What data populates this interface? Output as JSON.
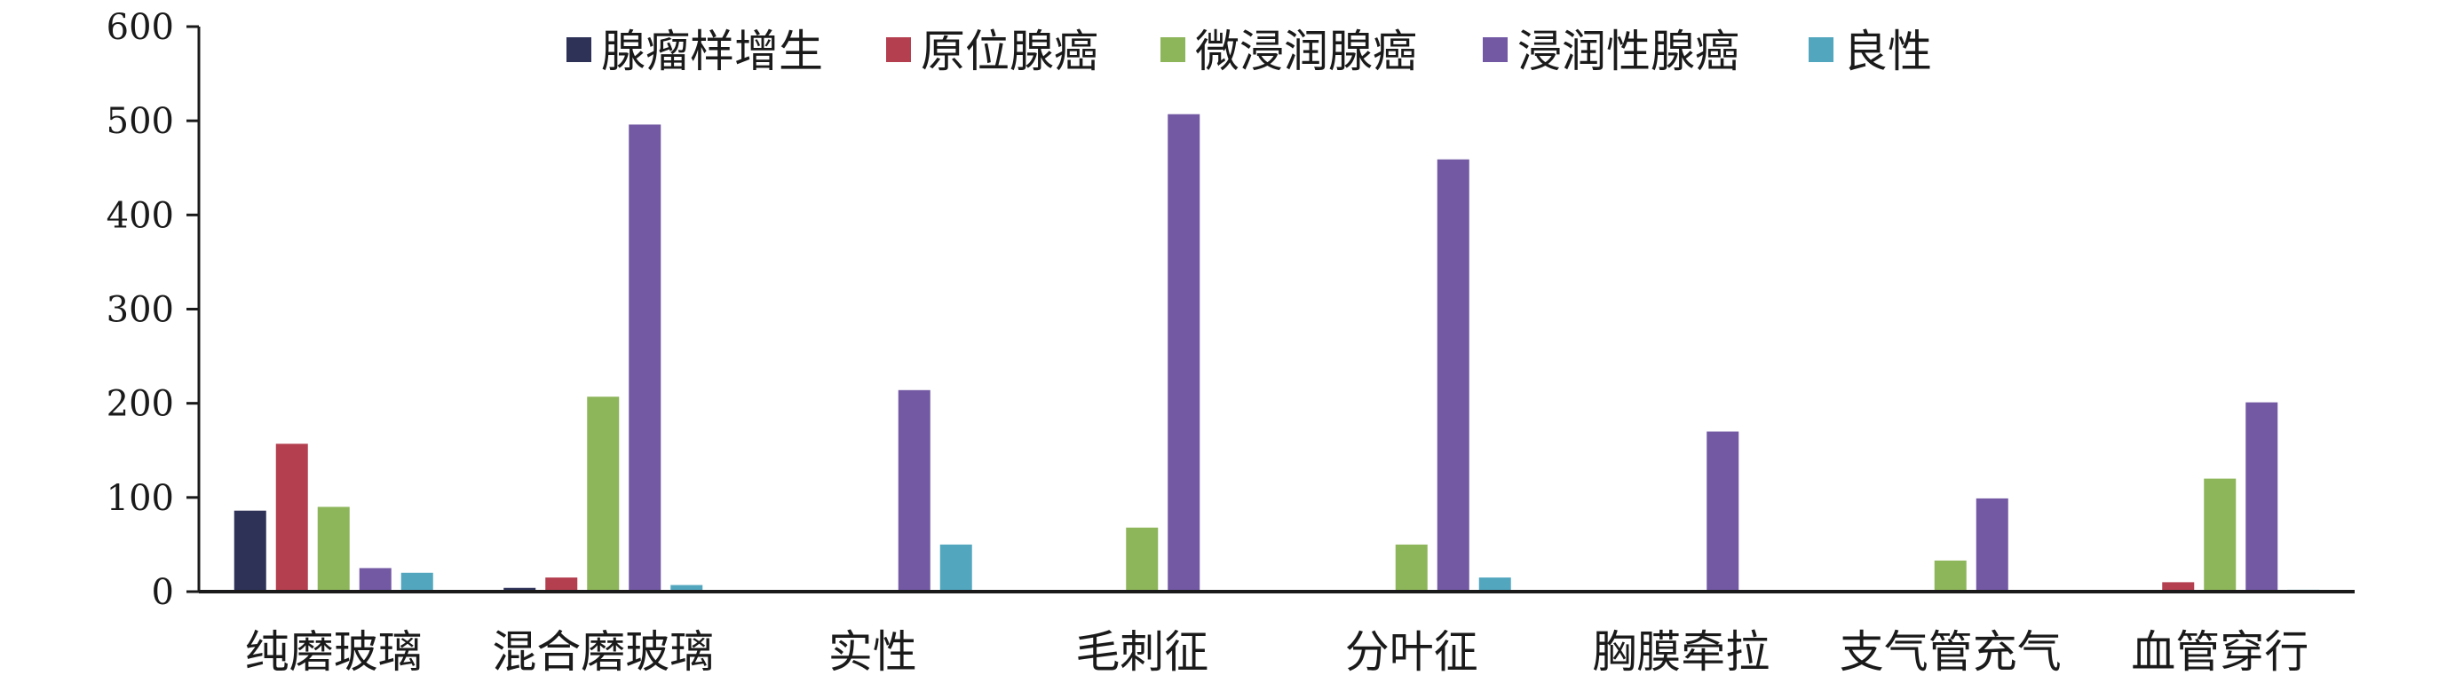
{
  "chart_data": {
    "type": "bar",
    "title": "",
    "xlabel": "",
    "ylabel": "",
    "ylim": [
      0,
      600
    ],
    "yticks": [
      0,
      100,
      200,
      300,
      400,
      500,
      600
    ],
    "ytick_labels": [
      "0",
      "100",
      "200",
      "300",
      "400",
      "500",
      "600"
    ],
    "grid": false,
    "legend_position": "top-center",
    "categories": [
      "纯磨玻璃",
      "混合磨玻璃",
      "实性",
      "毛刺征",
      "分叶征",
      "胸膜牵拉",
      "支气管充气",
      "血管穿行"
    ],
    "series": [
      {
        "name": "腺瘤样增生",
        "color": "#2e3257",
        "values": [
          86,
          4,
          0,
          0,
          0,
          0,
          0,
          0
        ]
      },
      {
        "name": "原位腺癌",
        "color": "#b43f4f",
        "values": [
          157,
          15,
          0,
          0,
          0,
          0,
          0,
          10
        ]
      },
      {
        "name": "微浸润腺癌",
        "color": "#8db55a",
        "values": [
          90,
          207,
          0,
          68,
          50,
          0,
          33,
          120
        ]
      },
      {
        "name": "浸润性腺癌",
        "color": "#7359a3",
        "values": [
          25,
          496,
          214,
          507,
          459,
          170,
          99,
          201
        ]
      },
      {
        "name": "良性",
        "color": "#52a7bf",
        "values": [
          20,
          7,
          50,
          0,
          15,
          0,
          0,
          2
        ]
      }
    ]
  }
}
